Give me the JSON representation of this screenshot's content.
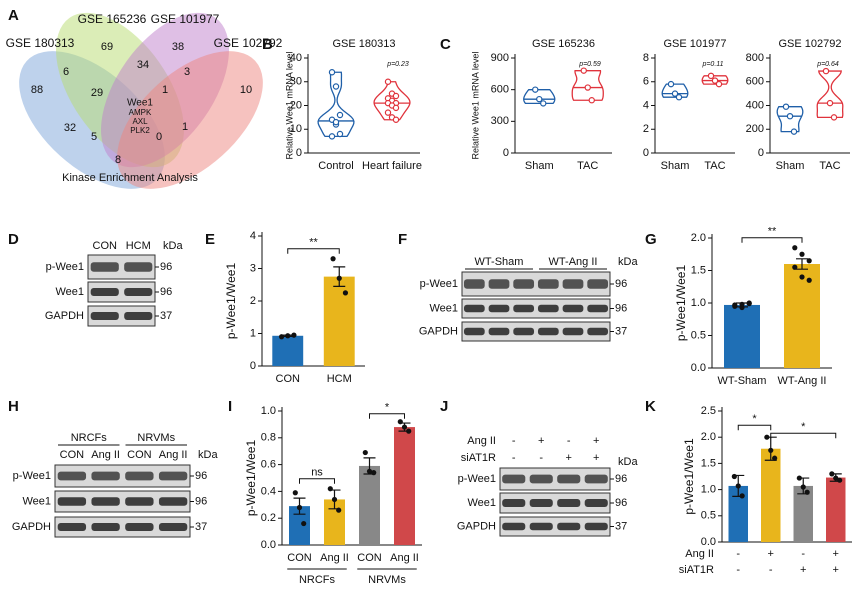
{
  "venn": {
    "letter": "A",
    "sets": [
      "GSE 180313",
      "GSE 165236",
      "GSE 101977",
      "GSE 102792"
    ],
    "counts": [
      88,
      69,
      38,
      10,
      6,
      34,
      3,
      29,
      1,
      32,
      5,
      0,
      1,
      8
    ],
    "center_genes": [
      "Wee1",
      "AMPK",
      "AXL",
      "PLK2"
    ],
    "caption": "Kinase Enrichment Analysis"
  },
  "chart_data": [
    {
      "type": "violin",
      "letter": "B",
      "title": "GSE 180313",
      "ylabel": "Relative Wee1 mRNA level",
      "categories": [
        "Control",
        "Heart failure"
      ],
      "values": [
        [
          34,
          28,
          16,
          14,
          12,
          8,
          7,
          13
        ],
        [
          30,
          25,
          24,
          23,
          22,
          21,
          21,
          20,
          19,
          17,
          15,
          14
        ]
      ],
      "colors": [
        "#1f5fa8",
        "#e0333c"
      ],
      "ylim": [
        0,
        40
      ],
      "yticks": [
        0,
        10,
        20,
        30,
        40
      ],
      "annotation": "p=0.23"
    },
    {
      "type": "violin",
      "letter": "C",
      "title": "GSE 165236",
      "ylabel": "Relative Wee1 mRNA level",
      "categories": [
        "Sham",
        "TAC"
      ],
      "values": [
        [
          600,
          510,
          470
        ],
        [
          780,
          620,
          500
        ]
      ],
      "colors": [
        "#1f5fa8",
        "#e0333c"
      ],
      "ylim": [
        0,
        900
      ],
      "yticks": [
        0,
        300,
        600,
        900
      ],
      "annotation": "p=0.59"
    },
    {
      "type": "violin",
      "title": "GSE 101977",
      "categories": [
        "Sham",
        "TAC"
      ],
      "values": [
        [
          5.8,
          5.0,
          4.7
        ],
        [
          6.5,
          6.1,
          5.8
        ]
      ],
      "colors": [
        "#1f5fa8",
        "#e0333c"
      ],
      "ylim": [
        0,
        8
      ],
      "yticks": [
        0,
        2,
        4,
        6,
        8
      ],
      "annotation": "p=0.11"
    },
    {
      "type": "violin",
      "title": "GSE 102792",
      "categories": [
        "Sham",
        "TAC"
      ],
      "values": [
        [
          390,
          310,
          180
        ],
        [
          690,
          420,
          300
        ]
      ],
      "colors": [
        "#1f5fa8",
        "#e0333c"
      ],
      "ylim": [
        0,
        800
      ],
      "yticks": [
        0,
        200,
        400,
        600,
        800
      ],
      "annotation": "p=0.64"
    },
    {
      "type": "bar",
      "letter": "E",
      "ylabel": "p-Wee1/Wee1",
      "categories": [
        "CON",
        "HCM"
      ],
      "values": [
        0.93,
        2.75
      ],
      "errors": [
        0.02,
        0.3
      ],
      "points": [
        [
          0.9,
          0.93,
          0.95
        ],
        [
          3.3,
          2.7,
          2.25
        ]
      ],
      "colors": [
        "#1f6fb5",
        "#e8b51c"
      ],
      "ylim": [
        0,
        4
      ],
      "yticks": [
        0,
        1,
        2,
        3,
        4
      ],
      "annotations": [
        "**"
      ]
    },
    {
      "type": "bar",
      "letter": "G",
      "ylabel": "p-Wee1/Wee1",
      "categories": [
        "WT-Sham",
        "WT-Ang II"
      ],
      "values": [
        0.97,
        1.6
      ],
      "errors": [
        0.03,
        0.08
      ],
      "points": [
        [
          0.97,
          0.93,
          1.0,
          0.95,
          0.98,
          0.99
        ],
        [
          1.85,
          1.75,
          1.65,
          1.55,
          1.4,
          1.35
        ]
      ],
      "colors": [
        "#1f6fb5",
        "#e8b51c"
      ],
      "ylim": [
        0,
        2
      ],
      "yticks": [
        {
          "value": 0,
          "label": "0.0"
        },
        0.5,
        {
          "value": 1,
          "label": "1.0"
        },
        1.5,
        {
          "value": 2,
          "label": "2.0"
        }
      ],
      "annotations": [
        "**"
      ]
    },
    {
      "type": "bar",
      "letter": "I",
      "ylabel": "p-Wee1/Wee1",
      "categories": [
        "CON",
        "Ang II",
        "CON",
        "Ang II"
      ],
      "groups": [
        "NRCFs",
        "NRVMs"
      ],
      "values": [
        0.29,
        0.34,
        0.59,
        0.88
      ],
      "errors": [
        0.06,
        0.07,
        0.06,
        0.03
      ],
      "points": [
        [
          0.39,
          0.28,
          0.16
        ],
        [
          0.42,
          0.34,
          0.26
        ],
        [
          0.69,
          0.55,
          0.54
        ],
        [
          0.92,
          0.88,
          0.85
        ]
      ],
      "colors": [
        "#1f6fb5",
        "#e8b51c",
        "#888888",
        "#d0484a"
      ],
      "ylim": [
        0,
        1
      ],
      "yticks": [
        {
          "value": 0,
          "label": "0.0"
        },
        0.2,
        0.4,
        0.6,
        0.8,
        {
          "value": 1,
          "label": "1.0"
        }
      ],
      "annotations": [
        "ns",
        "*"
      ]
    },
    {
      "type": "bar",
      "letter": "K",
      "ylabel": "p-Wee1/Wee1",
      "conditions": [
        {
          "name": "Ang II",
          "values": [
            "-",
            "+",
            "-",
            "+"
          ]
        },
        {
          "name": "siAT1R",
          "values": [
            "-",
            "-",
            "+",
            "+"
          ]
        }
      ],
      "values": [
        1.07,
        1.78,
        1.07,
        1.23
      ],
      "errors": [
        0.2,
        0.22,
        0.15,
        0.07
      ],
      "points": [
        [
          1.25,
          1.07,
          0.88
        ],
        [
          2.0,
          1.75,
          1.6
        ],
        [
          1.22,
          1.05,
          0.95
        ],
        [
          1.3,
          1.22,
          1.18
        ]
      ],
      "colors": [
        "#1f6fb5",
        "#e8b51c",
        "#888888",
        "#d0484a"
      ],
      "ylim": [
        0,
        2.5
      ],
      "yticks": [
        {
          "value": 0,
          "label": "0.0"
        },
        0.5,
        {
          "value": 1,
          "label": "1.0"
        },
        1.5,
        {
          "value": 2,
          "label": "2.0"
        },
        2.5
      ],
      "annotations": [
        "*",
        "*"
      ]
    }
  ],
  "blots": [
    {
      "letter": "D",
      "lanes": [
        "CON",
        "HCM"
      ],
      "kda_label": "kDa",
      "rows": [
        {
          "name": "p-Wee1",
          "kda": 96
        },
        {
          "name": "Wee1",
          "kda": 96
        },
        {
          "name": "GAPDH",
          "kda": 37
        }
      ]
    },
    {
      "letter": "F",
      "groups": [
        "WT-Sham",
        "WT-Ang II"
      ],
      "kda_label": "kDa",
      "rows": [
        {
          "name": "p-Wee1",
          "kda": 96
        },
        {
          "name": "Wee1",
          "kda": 96
        },
        {
          "name": "GAPDH",
          "kda": 37
        }
      ]
    },
    {
      "letter": "H",
      "groups": [
        "NRCFs",
        "NRVMs"
      ],
      "lanes": [
        "CON",
        "Ang II",
        "CON",
        "Ang II"
      ],
      "kda_label": "kDa",
      "rows": [
        {
          "name": "p-Wee1",
          "kda": 96
        },
        {
          "name": "Wee1",
          "kda": 96
        },
        {
          "name": "GAPDH",
          "kda": 37
        }
      ]
    },
    {
      "letter": "J",
      "conditions": [
        {
          "name": "Ang II",
          "values": [
            "-",
            "+",
            "-",
            "+"
          ]
        },
        {
          "name": "siAT1R",
          "values": [
            "-",
            "-",
            "+",
            "+"
          ]
        }
      ],
      "kda_label": "kDa",
      "rows": [
        {
          "name": "p-Wee1",
          "kda": 96
        },
        {
          "name": "Wee1",
          "kda": 96
        },
        {
          "name": "GAPDH",
          "kda": 37
        }
      ]
    }
  ]
}
